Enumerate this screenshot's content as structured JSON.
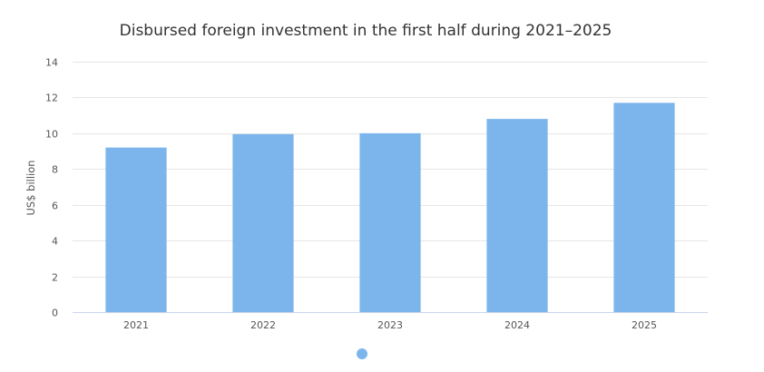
{
  "chart_data": {
    "type": "bar",
    "title": "Disbursed foreign investment in the first half during 2021–2025",
    "ylabel": "US$ billion",
    "xlabel": "",
    "categories": [
      "2021",
      "2022",
      "2023",
      "2024",
      "2025"
    ],
    "values": [
      9.2,
      9.95,
      10.0,
      10.8,
      11.7
    ],
    "ylim": [
      0,
      14
    ],
    "yticks": [
      "0",
      "2",
      "4",
      "6",
      "8",
      "10",
      "12",
      "14"
    ],
    "grid": true,
    "legend": "bottom-center",
    "color": "#7cb5ec"
  }
}
